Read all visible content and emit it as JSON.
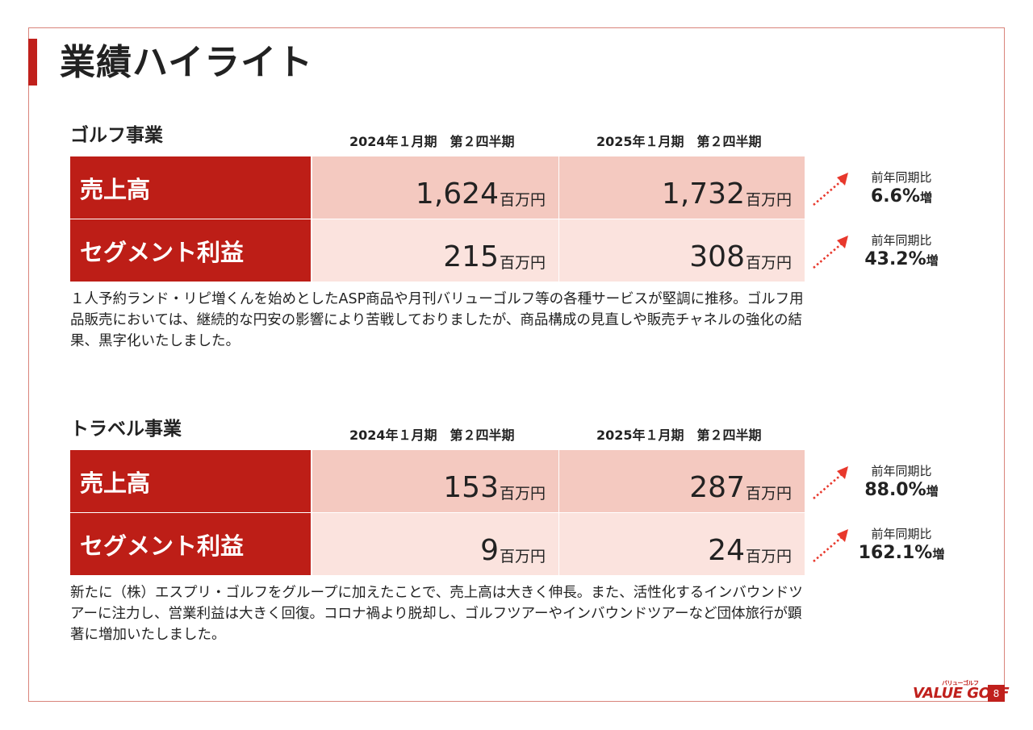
{
  "page_title": "業績ハイライト",
  "yoy_label": "前年同期比",
  "increase_suffix": "増",
  "unit": "百万円",
  "periods": [
    "2024年１月期　第２四半期",
    "2025年１月期　第２四半期"
  ],
  "golf": {
    "title": "ゴルフ事業",
    "rows": [
      {
        "label": "売上高",
        "v2024": "1,624",
        "v2025": "1,732",
        "yoy": "6.6%"
      },
      {
        "label": "セグメント利益",
        "v2024": "215",
        "v2025": "308",
        "yoy": "43.2%"
      }
    ],
    "description": "１人予約ランド・リピ増くんを始めとしたASP商品や月刊バリューゴルフ等の各種サービスが堅調に推移。ゴルフ用品販売においては、継続的な円安の影響により苦戦しておりましたが、商品構成の見直しや販売チャネルの強化の結果、黒字化いたしました。"
  },
  "travel": {
    "title": "トラベル事業",
    "rows": [
      {
        "label": "売上高",
        "v2024": "153",
        "v2025": "287",
        "yoy": "88.0%"
      },
      {
        "label": "セグメント利益",
        "v2024": "9",
        "v2025": "24",
        "yoy": "162.1%"
      }
    ],
    "description": "新たに（株）エスプリ・ゴルフをグループに加えたことで、売上高は大きく伸長。また、活性化するインバウンドツアーに注力し、営業利益は大きく回復。コロナ禍より脱却し、ゴルフツアーやインバウンドツアーなど団体旅行が顕著に増加いたしました。"
  },
  "logo_text": "VALUE GOLF",
  "logo_subtext": "バリューゴルフ",
  "page_number": "8",
  "colors": {
    "accent": "#bd1e17",
    "cell_dark": "#f4c9c0",
    "cell_light": "#fbe3de"
  }
}
